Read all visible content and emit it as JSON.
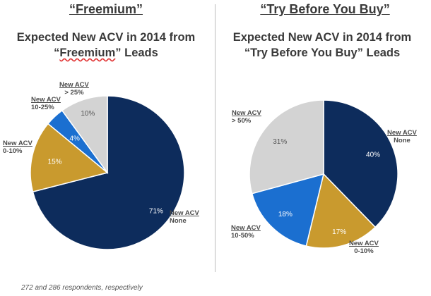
{
  "left_panel": {
    "heading": "“Freemium”",
    "title_line1": "Expected New ACV in 2014 from",
    "title_line2_q1": "“",
    "title_line2_word": "Freemium",
    "title_line2_q2": "” Leads"
  },
  "right_panel": {
    "heading": "“Try Before You Buy”",
    "title_line1": "Expected New ACV in 2014 from",
    "title_line2": "“Try Before You Buy” Leads"
  },
  "footnote": "272 and 286 respondents, respectively",
  "chart_data": [
    {
      "type": "pie",
      "title": "Expected New ACV in 2014 from “Freemium” Leads",
      "slices": [
        {
          "label_line1": "New ACV",
          "label_line2": "None",
          "value": 71,
          "value_label": "71%",
          "color": "#0d2c5c"
        },
        {
          "label_line1": "New ACV",
          "label_line2": "0-10%",
          "value": 15,
          "value_label": "15%",
          "color": "#c99a2e"
        },
        {
          "label_line1": "New ACV",
          "label_line2": "10-25%",
          "value": 4,
          "value_label": "4%",
          "color": "#1b6fd0"
        },
        {
          "label_line1": "New ACV",
          "label_line2": "> 25%",
          "value": 10,
          "value_label": "10%",
          "color": "#d3d3d3"
        }
      ]
    },
    {
      "type": "pie",
      "title": "Expected New ACV in 2014 from “Try Before You Buy” Leads",
      "slices": [
        {
          "label_line1": "New ACV",
          "label_line2": "None",
          "value": 40,
          "value_label": "40%",
          "color": "#0d2c5c"
        },
        {
          "label_line1": "New ACV",
          "label_line2": "0-10%",
          "value": 17,
          "value_label": "17%",
          "color": "#c99a2e"
        },
        {
          "label_line1": "New ACV",
          "label_line2": "10-50%",
          "value": 18,
          "value_label": "18%",
          "color": "#1b6fd0"
        },
        {
          "label_line1": "New ACV",
          "label_line2": "> 50%",
          "value": 31,
          "value_label": "31%",
          "color": "#d3d3d3"
        }
      ]
    }
  ]
}
